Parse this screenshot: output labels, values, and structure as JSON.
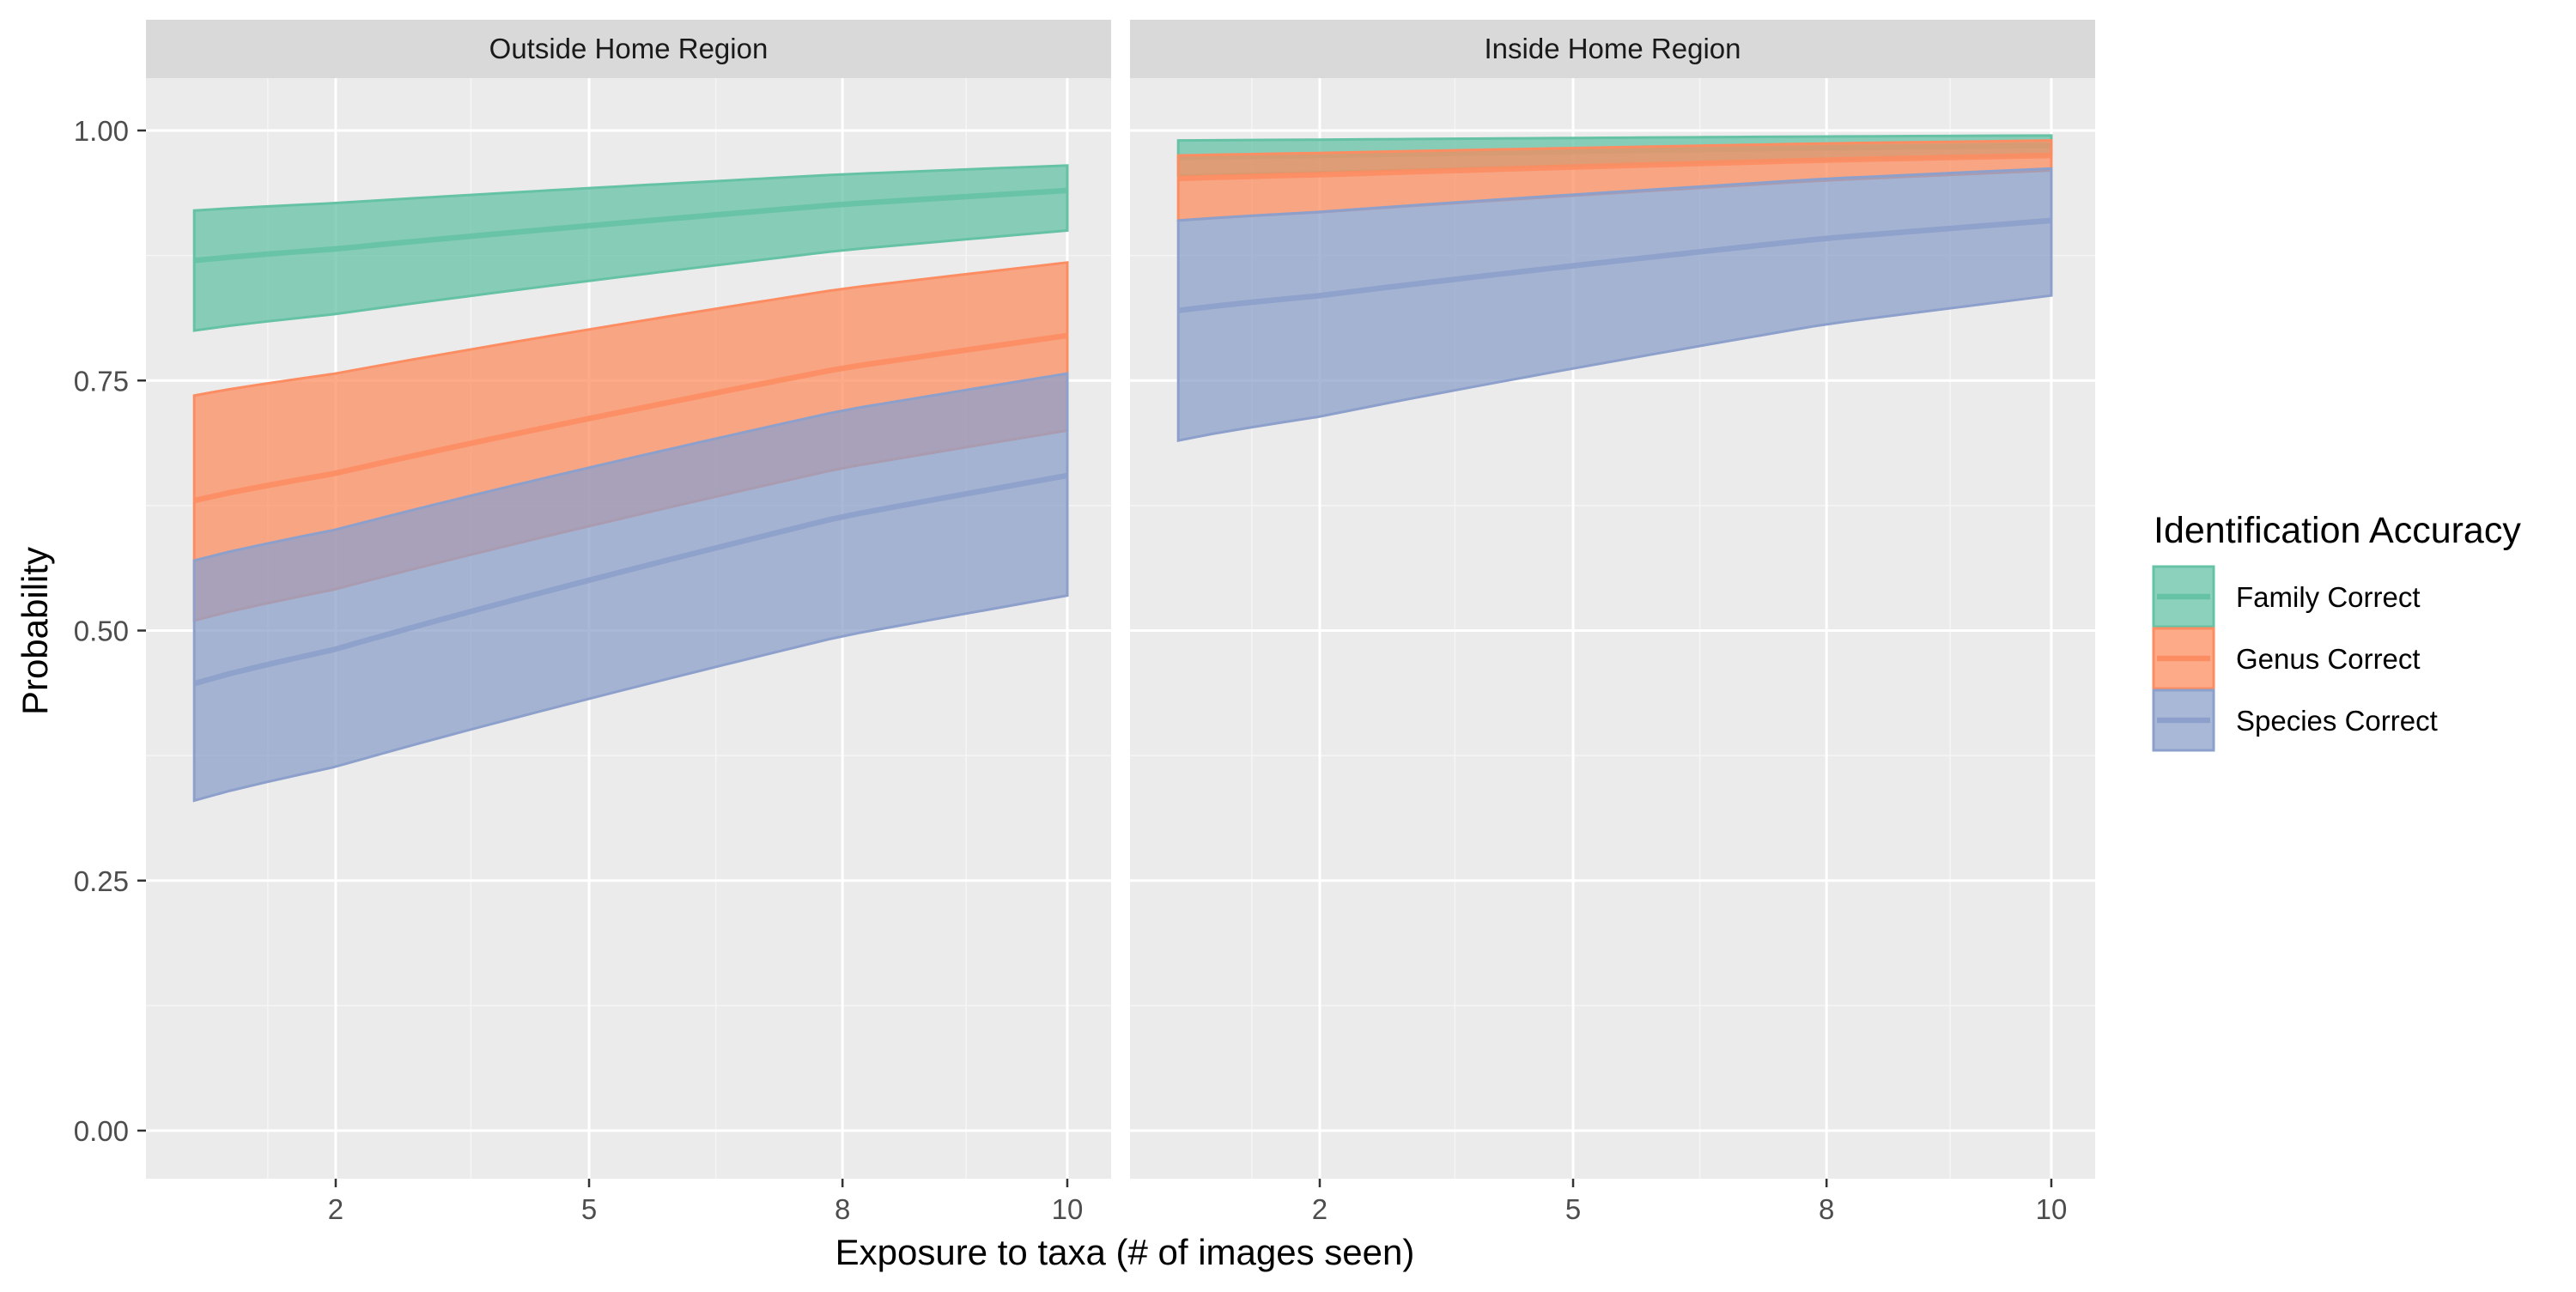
{
  "chart_data": {
    "type": "area",
    "xlabel": "Exposure to taxa (# of images seen)",
    "ylabel": "Probability",
    "ylim": [
      0,
      1.05
    ],
    "y_ticks": [
      "0.00",
      "0.25",
      "0.50",
      "0.75",
      "1.00"
    ],
    "x_ticks": [
      "2",
      "5",
      "8",
      "10"
    ],
    "grid": true,
    "legend": {
      "title": "Identification Accuracy",
      "placement": "right",
      "entries": [
        "Family Correct",
        "Genus Correct",
        "Species Correct"
      ]
    },
    "colors": {
      "Family Correct": "#66c2a5",
      "Genus Correct": "#fc8d62",
      "Species Correct": "#8da0cb"
    },
    "panels": [
      {
        "title": "Outside Home Region",
        "series": [
          {
            "name": "Family Correct",
            "x": [
              1,
              10
            ],
            "fit": [
              0.87,
              0.94
            ],
            "lower": [
              0.8,
              0.9
            ],
            "upper": [
              0.92,
              0.965
            ]
          },
          {
            "name": "Genus Correct",
            "x": [
              1,
              10
            ],
            "fit": [
              0.63,
              0.795
            ],
            "lower": [
              0.51,
              0.7
            ],
            "upper": [
              0.735,
              0.868
            ]
          },
          {
            "name": "Species Correct",
            "x": [
              1,
              10
            ],
            "fit": [
              0.447,
              0.655
            ],
            "lower": [
              0.33,
              0.535
            ],
            "upper": [
              0.57,
              0.757
            ]
          }
        ]
      },
      {
        "title": "Inside Home Region",
        "series": [
          {
            "name": "Family Correct",
            "x": [
              1,
              10
            ],
            "fit": [
              0.973,
              0.985
            ],
            "lower": [
              0.955,
              0.975
            ],
            "upper": [
              0.99,
              0.995
            ]
          },
          {
            "name": "Genus Correct",
            "x": [
              1,
              10
            ],
            "fit": [
              0.952,
              0.975
            ],
            "lower": [
              0.91,
              0.96
            ],
            "upper": [
              0.975,
              0.99
            ]
          },
          {
            "name": "Species Correct",
            "x": [
              1,
              10
            ],
            "fit": [
              0.82,
              0.91
            ],
            "lower": [
              0.69,
              0.835
            ],
            "upper": [
              0.91,
              0.962
            ]
          }
        ]
      }
    ]
  }
}
